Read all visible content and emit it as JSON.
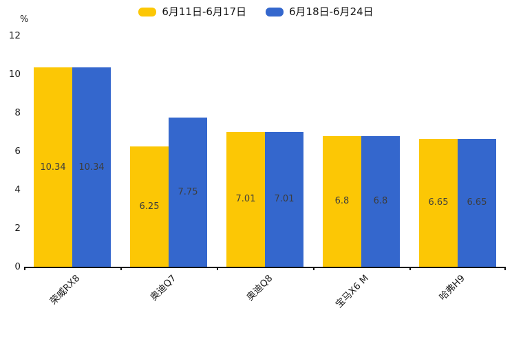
{
  "chart_data": {
    "type": "bar",
    "title": "",
    "unit_label": "%",
    "categories": [
      "荣威RX8",
      "奥迪Q7",
      "奥迪Q8",
      "宝马X6 M",
      "哈弗H9"
    ],
    "series": [
      {
        "name": "6月11日-6月17日",
        "color": "#FCC705",
        "values": [
          10.34,
          6.25,
          7.01,
          6.8,
          6.65
        ]
      },
      {
        "name": "6月18日-6月24日",
        "color": "#3467CD",
        "values": [
          10.34,
          7.75,
          7.01,
          6.8,
          6.65
        ]
      }
    ],
    "ylim": [
      0,
      12
    ],
    "yticks": [
      0,
      2,
      4,
      6,
      8,
      10,
      12
    ],
    "grid": false,
    "legend_position": "top",
    "xlabel": "",
    "ylabel": "%",
    "bar_label_color": "#3d3d3d",
    "axis_color": "#111111",
    "tick_label_color": "#1a1a1a"
  }
}
